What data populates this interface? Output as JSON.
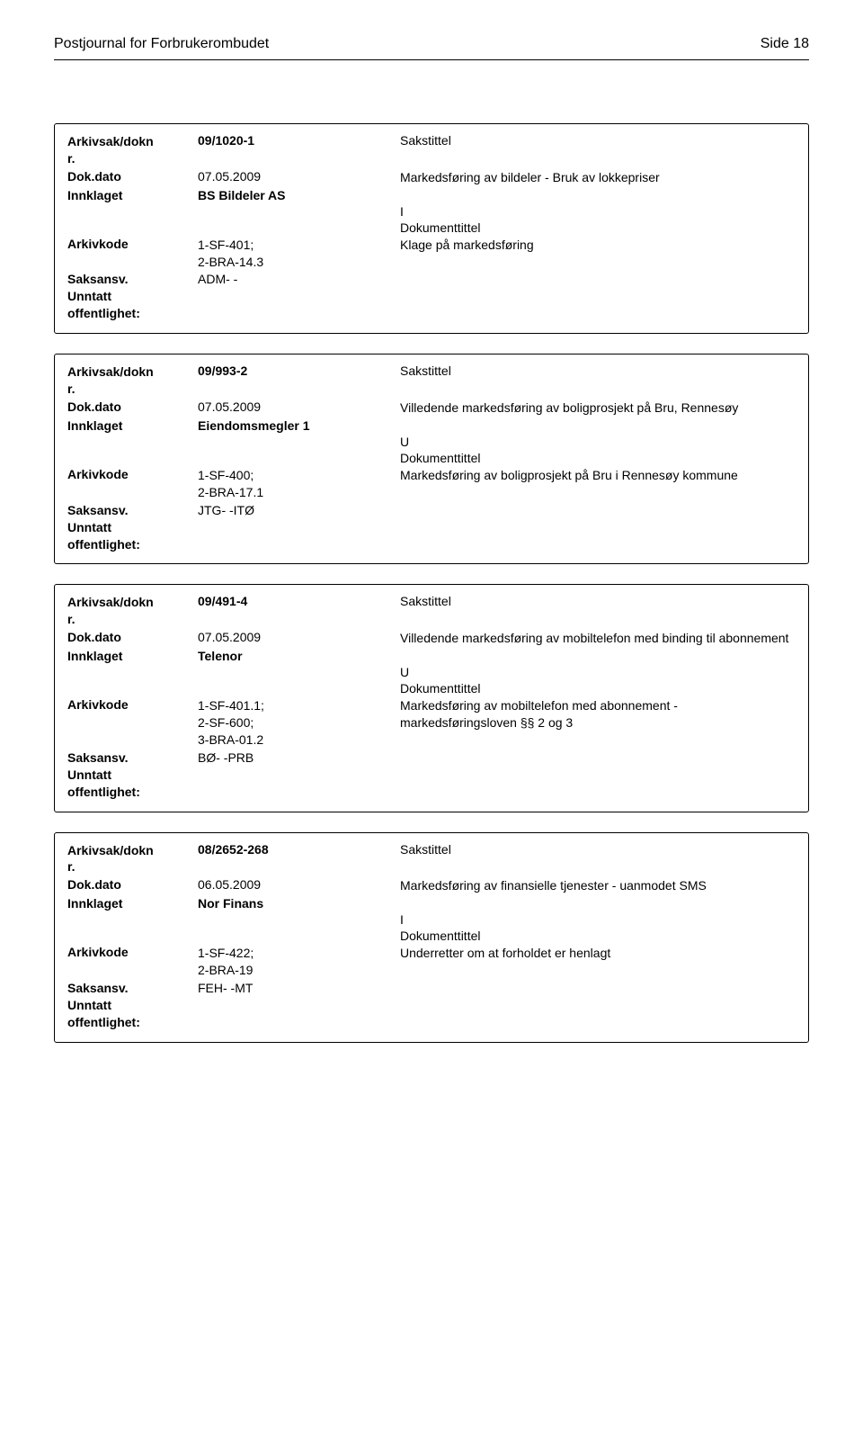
{
  "header": {
    "journal_title": "Postjournal for Forbrukerombudet",
    "page_label": "Side 18"
  },
  "labels": {
    "arkivsak": "Arkivsak/dokn\nr.",
    "dokdato": "Dok.dato",
    "innklaget": "Innklaget",
    "arkivkode": "Arkivkode",
    "saksansv": "Saksansv.",
    "unntatt": "Unntatt\noffentlighet:",
    "sakstittel": "Sakstittel",
    "dokumenttittel": "Dokumenttittel"
  },
  "records": [
    {
      "arkivsak": "09/1020-1",
      "dokdato": "07.05.2009",
      "sakstittel_text": "Markedsføring av bildeler - Bruk av lokkepriser",
      "innklaget": "BS Bildeler AS",
      "io": "I",
      "arkivkode": "1-SF-401;\n2-BRA-14.3",
      "doktittel_text": "Klage på markedsføring",
      "saksansv": "ADM- -"
    },
    {
      "arkivsak": "09/993-2",
      "dokdato": "07.05.2009",
      "sakstittel_text": "Villedende markedsføring av boligprosjekt på Bru, Rennesøy",
      "innklaget": "Eiendomsmegler 1",
      "io": "U",
      "arkivkode": "1-SF-400;\n2-BRA-17.1",
      "doktittel_text": "Markedsføring av boligprosjekt på Bru i Rennesøy kommune",
      "saksansv": "JTG- -ITØ"
    },
    {
      "arkivsak": "09/491-4",
      "dokdato": "07.05.2009",
      "sakstittel_text": "Villedende markedsføring av mobiltelefon med binding til abonnement",
      "innklaget": "Telenor",
      "io": "U",
      "arkivkode": "1-SF-401.1;\n2-SF-600;\n3-BRA-01.2",
      "doktittel_text": "Markedsføring av mobiltelefon med abonnement - markedsføringsloven §§ 2 og 3",
      "saksansv": "BØ- -PRB"
    },
    {
      "arkivsak": "08/2652-268",
      "dokdato": "06.05.2009",
      "sakstittel_text": "Markedsføring av finansielle tjenester - uanmodet SMS",
      "innklaget": "Nor Finans",
      "io": "I",
      "arkivkode": "1-SF-422;\n2-BRA-19",
      "doktittel_text": "Underretter om at forholdet er henlagt",
      "saksansv": "FEH- -MT"
    }
  ]
}
